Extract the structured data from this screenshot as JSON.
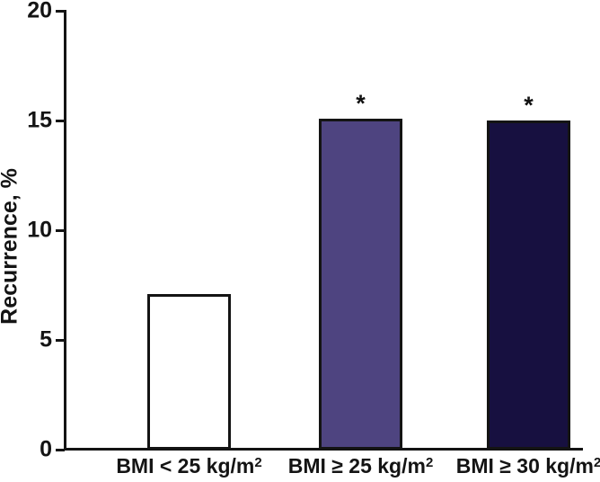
{
  "chart_data": {
    "type": "bar",
    "title": "",
    "xlabel": "",
    "ylabel": "Recurrence, %",
    "ylim": [
      0,
      20
    ],
    "yticks": [
      0,
      5,
      10,
      15,
      20
    ],
    "grid": false,
    "legend": "none",
    "categories": [
      "BMI < 25 kg/m²",
      "BMI ≥ 25 kg/m²",
      "BMI ≥ 30 kg/m²"
    ],
    "values": [
      7.1,
      15.1,
      15.0
    ],
    "annotations": [
      "",
      "*",
      "*"
    ],
    "bar_colors": [
      "#ffffff",
      "#4e4480",
      "#171040"
    ],
    "bar_border_color": "#141414",
    "axis_color": "#141414",
    "background_color": "#ffffff"
  }
}
